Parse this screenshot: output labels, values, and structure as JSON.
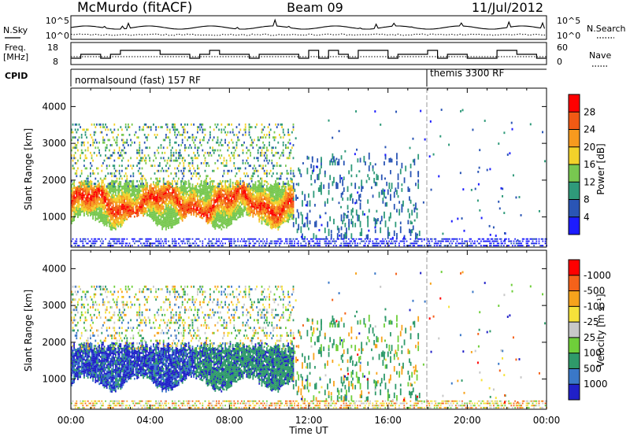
{
  "header": {
    "station": "McMurdo (fitACF)",
    "beam": "Beam 09",
    "date": "11/Jul/2012"
  },
  "top_panels": {
    "nsky_label": "N.Sky",
    "nsky_ticks": [
      "10^5",
      "10^0"
    ],
    "nsearch_label": "N.Search",
    "nsearch_ticks": [
      "10^5",
      "10^0"
    ],
    "freq_label_1": "Freq.",
    "freq_label_2": "[MHz]",
    "freq_ticks": [
      "18",
      "8"
    ],
    "nave_label": "Nave",
    "nave_ticks": [
      "60",
      "0"
    ],
    "cpid_label": "CPID",
    "cpid_segments": [
      "normalsound (fast) 157 RF",
      "themis 3300 RF"
    ]
  },
  "chart_data": [
    {
      "type": "heatmap",
      "title": "",
      "ylabel": "Slant Range [km]",
      "xlabel": "",
      "ylim": [
        180,
        4500
      ],
      "yticks": [
        1000,
        2000,
        3000,
        4000
      ],
      "xlim": [
        0,
        24
      ],
      "colorbar": {
        "label": "Power [dB]",
        "ticks": [
          "4",
          "8",
          "12",
          "16",
          "20",
          "24",
          "28"
        ],
        "colors": [
          "#1c1cff",
          "#2a55b5",
          "#2f9a7a",
          "#78c850",
          "#f2d22a",
          "#f79a1e",
          "#f25a14",
          "#ff0000"
        ]
      },
      "regions": [
        {
          "t": [
            0,
            11.2
          ],
          "range": [
            700,
            2000
          ],
          "level": 6
        },
        {
          "t": [
            0,
            11.2
          ],
          "range": [
            2000,
            3500
          ],
          "level": 3
        },
        {
          "t": [
            11.2,
            17.5
          ],
          "range": [
            500,
            2500
          ],
          "level": 1
        },
        {
          "t": [
            0,
            24
          ],
          "range": [
            200,
            400
          ],
          "level": 1
        }
      ]
    },
    {
      "type": "heatmap",
      "title": "",
      "ylabel": "Slant Range [km]",
      "xlabel": "Time UT",
      "ylim": [
        180,
        4500
      ],
      "yticks": [
        1000,
        2000,
        3000,
        4000
      ],
      "xlim": [
        0,
        24
      ],
      "xticks": [
        "00:00",
        "04:00",
        "08:00",
        "12:00",
        "16:00",
        "20:00",
        "00:00"
      ],
      "colorbar": {
        "label": "Velocity [m s⁻¹]",
        "ticks": [
          "1000",
          "500",
          "100",
          "25",
          "-25",
          "-100",
          "-500",
          "-1000"
        ],
        "colors": [
          "#2020c8",
          "#3a78c8",
          "#2f9a6a",
          "#6fcf3a",
          "#c8c8c8",
          "#f5e23a",
          "#f7a31c",
          "#f5621a",
          "#ff0000"
        ]
      },
      "regions": [
        {
          "t": [
            0,
            11.2
          ],
          "range": [
            700,
            1900
          ],
          "level": "-1000 to 500"
        },
        {
          "t": [
            11.2,
            17.5
          ],
          "range": [
            500,
            2500
          ],
          "level": "100"
        }
      ]
    }
  ]
}
